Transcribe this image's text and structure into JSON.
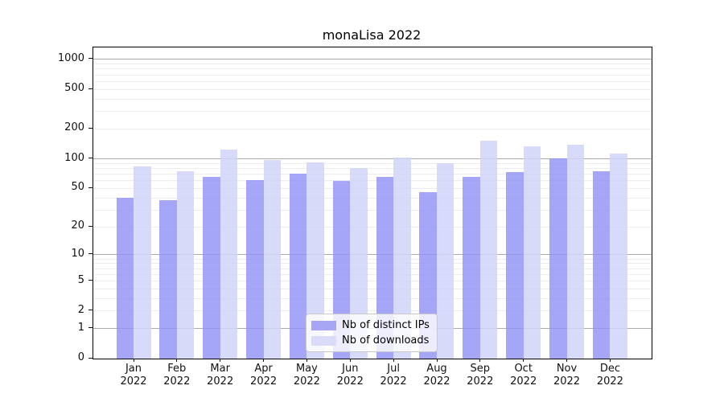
{
  "chart_data": {
    "type": "bar",
    "title": "monaLisa 2022",
    "categories": [
      "Jan",
      "Feb",
      "Mar",
      "Apr",
      "May",
      "Jun",
      "Jul",
      "Aug",
      "Sep",
      "Oct",
      "Nov",
      "Dec"
    ],
    "x_year": "2022",
    "series": [
      {
        "name": "Nb of distinct IPs",
        "color": "rgba(146,146,248,0.82)",
        "swatch_color": "#a6a6f5",
        "values": [
          40,
          38,
          66,
          61,
          71,
          60,
          66,
          46,
          66,
          74,
          101,
          75
        ]
      },
      {
        "name": "Nb of downloads",
        "color": "rgba(209,211,248,0.85)",
        "swatch_color": "#d9dbf9",
        "values": [
          84,
          75,
          125,
          97,
          92,
          80,
          103,
          90,
          152,
          134,
          139,
          113
        ]
      }
    ],
    "y_ticks": [
      0,
      1,
      2,
      5,
      10,
      20,
      50,
      100,
      200,
      500,
      1000
    ],
    "y_scale": "log10(value+1)",
    "ylim": [
      0,
      1300
    ],
    "grid": "horizontal, major at powers of 10 + light minors",
    "legend_position": "lower center"
  },
  "colors": {
    "background": "#ffffff",
    "frame": "#000000",
    "grid_major": "#ababab",
    "grid_minor": "#ececec",
    "text": "#111111"
  }
}
